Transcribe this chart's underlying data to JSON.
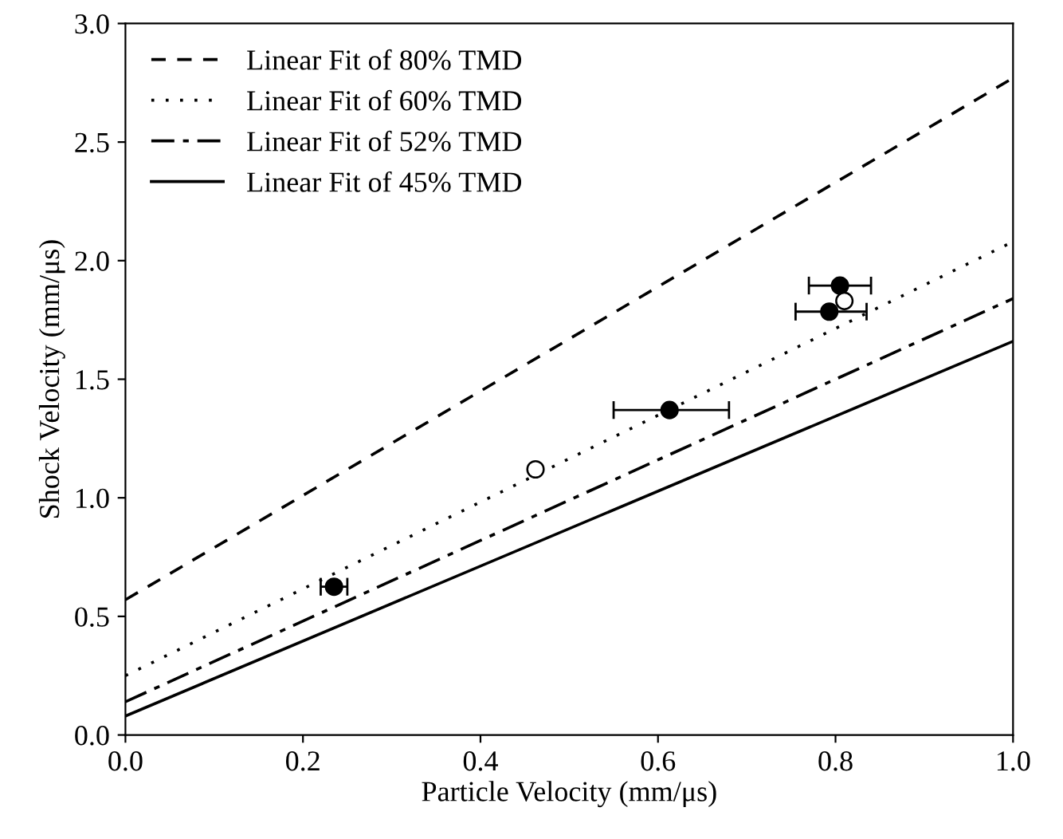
{
  "chart_data": {
    "type": "scatter",
    "xlabel": "Particle Velocity (mm/μs)",
    "ylabel": "Shock Velocity (mm/μs)",
    "xlim": [
      0.0,
      1.0
    ],
    "ylim": [
      0.0,
      3.0
    ],
    "xticks": [
      {
        "value": 0.0,
        "label": "0.0"
      },
      0.2,
      0.4,
      0.6,
      0.8,
      {
        "value": 1.0,
        "label": "1.0"
      }
    ],
    "yticks": [
      {
        "value": 0.0,
        "label": "0.0"
      },
      0.5,
      {
        "value": 1.0,
        "label": "1.0"
      },
      1.5,
      {
        "value": 2.0,
        "label": "2.0"
      },
      2.5,
      {
        "value": 3.0,
        "label": "3.0"
      }
    ],
    "grid": false,
    "legend": "top left",
    "series": [
      {
        "name": "Linear Fit of 80% TMD",
        "type": "line",
        "line_style": "dashed",
        "marker": "none",
        "color": "#000000",
        "x": [
          0.0,
          1.0
        ],
        "values": [
          0.57,
          2.77
        ]
      },
      {
        "name": "Linear Fit of 60% TMD",
        "type": "line",
        "line_style": "dotted",
        "marker": "none",
        "color": "#000000",
        "x": [
          0.0,
          1.0
        ],
        "values": [
          0.25,
          2.08
        ]
      },
      {
        "name": "Linear Fit of 52% TMD",
        "type": "line",
        "line_style": "dashdot",
        "marker": "none",
        "color": "#000000",
        "x": [
          0.0,
          1.0
        ],
        "values": [
          0.14,
          1.84
        ]
      },
      {
        "name": "Linear Fit of 45% TMD",
        "type": "line",
        "line_style": "solid",
        "marker": "none",
        "color": "#000000",
        "x": [
          0.0,
          1.0
        ],
        "values": [
          0.08,
          1.66
        ]
      },
      {
        "marker": "circle",
        "color": "#000000",
        "x": [
          0.235,
          0.613,
          0.805,
          0.793
        ],
        "values": [
          0.625,
          1.37,
          1.895,
          1.785
        ],
        "xerrors": [
          [
            0.22,
            0.25
          ],
          [
            0.55,
            0.68
          ],
          [
            0.77,
            0.84
          ],
          [
            0.755,
            0.835
          ]
        ]
      },
      {
        "marker": "circle",
        "color": "#ffffff",
        "x": [
          0.462,
          0.81
        ],
        "values": [
          1.12,
          1.83
        ]
      }
    ]
  }
}
